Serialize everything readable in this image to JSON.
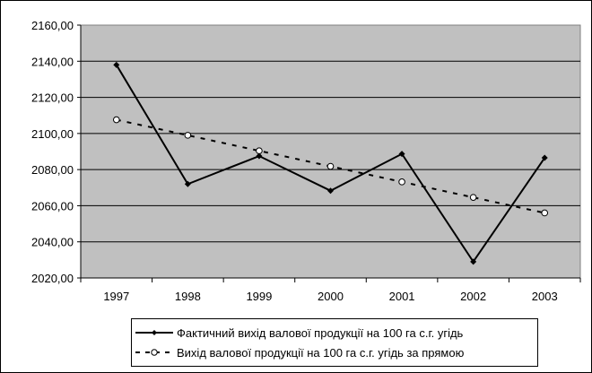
{
  "chart_data": {
    "type": "line",
    "title": "",
    "xlabel": "",
    "ylabel": "",
    "categories": [
      "1997",
      "1998",
      "1999",
      "2000",
      "2001",
      "2002",
      "2003"
    ],
    "ylim": [
      2020,
      2160
    ],
    "yticks": [
      "2020,00",
      "2040,00",
      "2060,00",
      "2080,00",
      "2100,00",
      "2120,00",
      "2140,00",
      "2160,00"
    ],
    "ytick_values": [
      2020,
      2040,
      2060,
      2080,
      2100,
      2120,
      2140,
      2160
    ],
    "grid": true,
    "legend_position": "bottom",
    "plot_background": "#c0c0c0",
    "series": [
      {
        "name": "Фактичний вихід валової продукції на 100 га с.г. угідь",
        "values": [
          2138.0,
          2072.0,
          2087.5,
          2068.3,
          2088.7,
          2029.0,
          2086.5
        ],
        "style": "solid",
        "marker": "filled-diamond",
        "color": "#000000"
      },
      {
        "name": "Вихід валової продукції на 100 га с.г. угідь за прямою",
        "values": [
          2107.6,
          2099.0,
          2090.4,
          2081.8,
          2073.2,
          2064.6,
          2056.0
        ],
        "style": "dashed",
        "marker": "open-circle",
        "color": "#000000"
      }
    ]
  }
}
